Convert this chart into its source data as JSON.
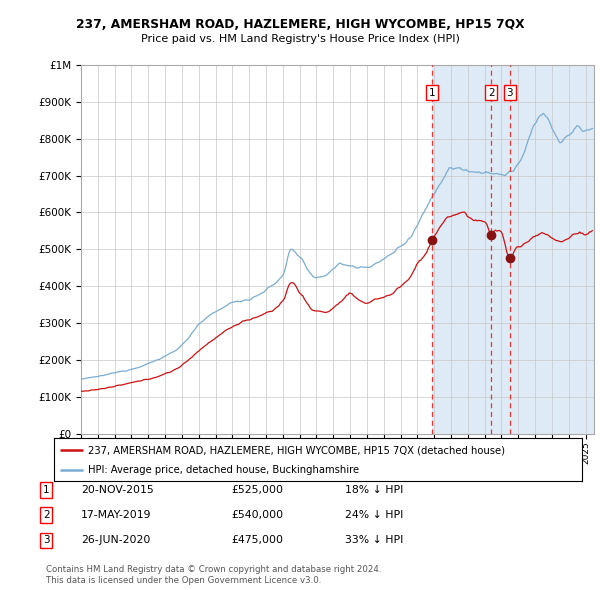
{
  "title1": "237, AMERSHAM ROAD, HAZLEMERE, HIGH WYCOMBE, HP15 7QX",
  "title2": "Price paid vs. HM Land Registry's House Price Index (HPI)",
  "legend_line1": "237, AMERSHAM ROAD, HAZLEMERE, HIGH WYCOMBE, HP15 7QX (detached house)",
  "legend_line2": "HPI: Average price, detached house, Buckinghamshire",
  "transactions": [
    {
      "num": 1,
      "date": "20-NOV-2015",
      "price": 525000,
      "pct": "18%",
      "dir": "↓",
      "decimal_date": 2015.89
    },
    {
      "num": 2,
      "date": "17-MAY-2019",
      "price": 540000,
      "pct": "24%",
      "dir": "↓",
      "decimal_date": 2019.38
    },
    {
      "num": 3,
      "date": "26-JUN-2020",
      "price": 475000,
      "pct": "33%",
      "dir": "↓",
      "decimal_date": 2020.49
    }
  ],
  "hpi_color": "#7aadd4",
  "price_color": "#cc1111",
  "marker_color": "#881111",
  "dashed_color": "#ee3333",
  "highlight_color": "#deeaf5",
  "grid_color": "#c8c8c8",
  "background_color": "#ffffff",
  "ylim": [
    0,
    1000000
  ],
  "xlim_start": 1995.0,
  "xlim_end": 2025.5,
  "footer": "Contains HM Land Registry data © Crown copyright and database right 2024.\nThis data is licensed under the Open Government Licence v3.0."
}
